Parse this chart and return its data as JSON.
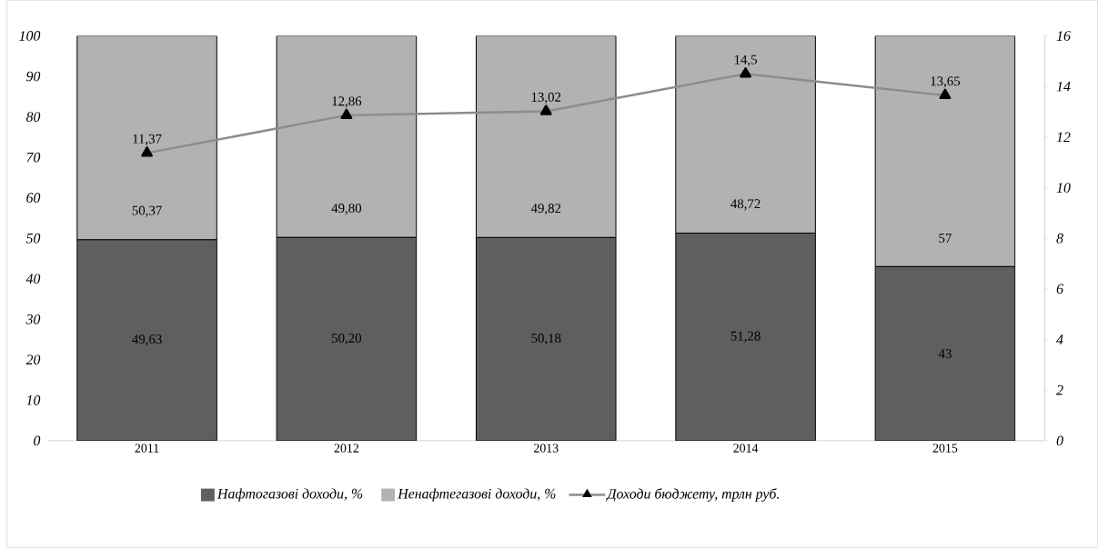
{
  "chart_data": {
    "type": "bar",
    "stacked": true,
    "categories": [
      "2011",
      "2012",
      "2013",
      "2014",
      "2015"
    ],
    "series": [
      {
        "name": "Нафтогазові доходи, %",
        "color": "#5f5f5f",
        "values": [
          49.63,
          50.2,
          50.18,
          51.28,
          43
        ],
        "value_labels": [
          "49,63",
          "50,20",
          "50,18",
          "51,28",
          "43"
        ]
      },
      {
        "name": "Ненафтегазові доходи, %",
        "color": "#b2b2b2",
        "values": [
          50.37,
          49.8,
          49.82,
          48.72,
          57
        ],
        "value_labels": [
          "50,37",
          "49,80",
          "49,82",
          "48,72",
          "57"
        ]
      },
      {
        "name": "Доходи бюджету, трлн руб.",
        "type": "line",
        "axis": "y2",
        "color": "#8c8c8c",
        "marker": "triangle",
        "values": [
          11.37,
          12.86,
          13.02,
          14.5,
          13.65
        ],
        "value_labels": [
          "11,37",
          "12,86",
          "13,02",
          "14,5",
          "13,65"
        ]
      }
    ],
    "ylim": [
      0,
      100
    ],
    "yticks": [
      0,
      10,
      20,
      30,
      40,
      50,
      60,
      70,
      80,
      90,
      100
    ],
    "y2lim": [
      0,
      16
    ],
    "y2ticks": [
      0,
      2,
      4,
      6,
      8,
      10,
      12,
      14,
      16
    ],
    "legend": "bottom"
  }
}
